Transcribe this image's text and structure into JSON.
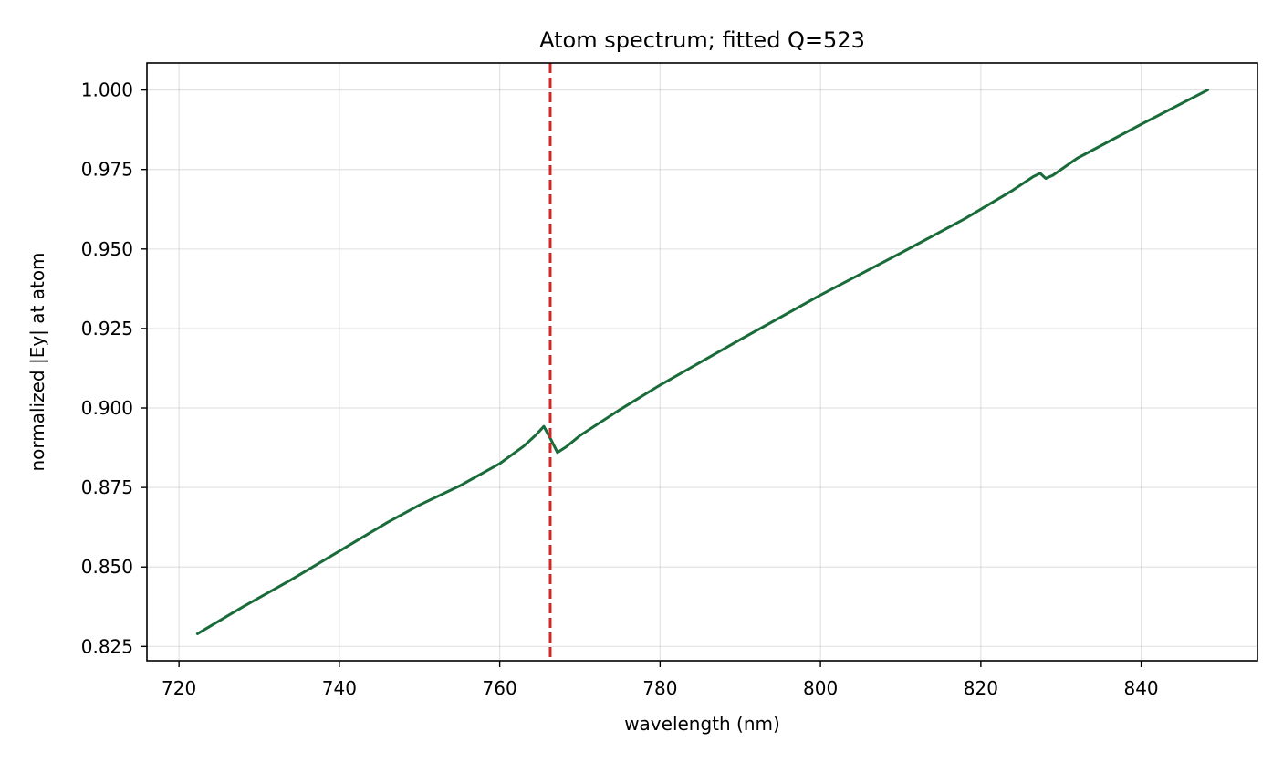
{
  "chart_data": {
    "type": "line",
    "title": "Atom spectrum; fitted Q=523",
    "xlabel": "wavelength (nm)",
    "ylabel": "normalized |Ey| at atom",
    "xlim": [
      716,
      854.5
    ],
    "ylim": [
      0.8205,
      1.0085
    ],
    "xticks": [
      720,
      740,
      760,
      780,
      800,
      820,
      840
    ],
    "xtick_labels": [
      "720",
      "740",
      "760",
      "780",
      "800",
      "820",
      "840"
    ],
    "yticks": [
      0.825,
      0.85,
      0.875,
      0.9,
      0.925,
      0.95,
      0.975,
      1.0
    ],
    "ytick_labels": [
      "0.825",
      "0.850",
      "0.875",
      "0.900",
      "0.925",
      "0.950",
      "0.975",
      "1.000"
    ],
    "grid": true,
    "series": [
      {
        "color": "#1a6b3a",
        "x": [
          722.3,
          728,
          734,
          740,
          746,
          750,
          755,
          760,
          763,
          764.5,
          765.5,
          766.3,
          767.2,
          768.3,
          770,
          775,
          780,
          790,
          800,
          810,
          818,
          824,
          826.5,
          827.4,
          828.1,
          829,
          832,
          840,
          848.3
        ],
        "y": [
          0.829,
          0.8375,
          0.846,
          0.855,
          0.864,
          0.8695,
          0.8755,
          0.8825,
          0.888,
          0.8915,
          0.8942,
          0.8905,
          0.886,
          0.8878,
          0.8913,
          0.8995,
          0.9072,
          0.9215,
          0.9355,
          0.9487,
          0.9595,
          0.9685,
          0.9727,
          0.9738,
          0.9722,
          0.9732,
          0.9785,
          0.9892,
          1.0
        ]
      }
    ],
    "vlines": [
      {
        "x": 766.3,
        "color": "#d62728",
        "style": "dashed"
      }
    ]
  }
}
